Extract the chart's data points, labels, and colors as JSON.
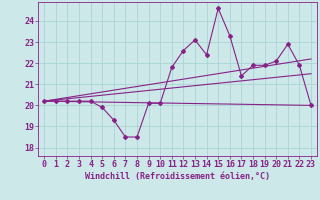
{
  "xlabel": "Windchill (Refroidissement éolien,°C)",
  "background_color": "#cce8e8",
  "grid_color": "#aad4d4",
  "line_color": "#882288",
  "xlim": [
    -0.5,
    23.5
  ],
  "ylim": [
    17.6,
    24.9
  ],
  "yticks": [
    18,
    19,
    20,
    21,
    22,
    23,
    24
  ],
  "xticks": [
    0,
    1,
    2,
    3,
    4,
    5,
    6,
    7,
    8,
    9,
    10,
    11,
    12,
    13,
    14,
    15,
    16,
    17,
    18,
    19,
    20,
    21,
    22,
    23
  ],
  "series1_x": [
    0,
    1,
    2,
    3,
    4,
    5,
    6,
    7,
    8,
    9,
    10,
    11,
    12,
    13,
    14,
    15,
    16,
    17,
    18,
    19,
    20,
    21,
    22,
    23
  ],
  "series1_y": [
    20.2,
    20.2,
    20.2,
    20.2,
    20.2,
    19.9,
    19.3,
    18.5,
    18.5,
    20.1,
    20.1,
    21.8,
    22.6,
    23.1,
    22.4,
    24.6,
    23.3,
    21.4,
    21.9,
    21.9,
    22.1,
    22.9,
    21.9,
    20.0
  ],
  "line2_x": [
    0,
    23
  ],
  "line2_y": [
    20.2,
    20.0
  ],
  "line3_x": [
    0,
    23
  ],
  "line3_y": [
    20.2,
    21.5
  ],
  "line4_x": [
    0,
    23
  ],
  "line4_y": [
    20.2,
    22.2
  ],
  "tick_fontsize": 6,
  "xlabel_fontsize": 6,
  "linewidth": 0.8,
  "markersize": 2.0
}
